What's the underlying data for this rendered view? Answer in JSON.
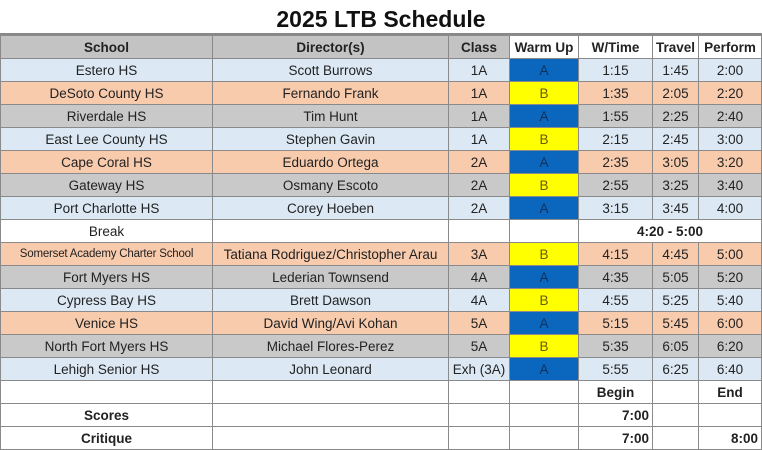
{
  "title": "2025 LTB Schedule",
  "columns": [
    "School",
    "Director(s)",
    "Class",
    "Warm Up",
    "W/Time",
    "Travel",
    "Perform"
  ],
  "colors": {
    "light_blue": "#dce9f5",
    "peach": "#f8cbad",
    "gray": "#c9c9c9",
    "warmup_a": "#0b67bd",
    "warmup_b": "#ffff00"
  },
  "rows": [
    {
      "school": "Estero HS",
      "director": "Scott Burrows",
      "class": "1A",
      "warmup": "A",
      "wtime": "1:15",
      "travel": "1:45",
      "perform": "2:00",
      "shade": "lb"
    },
    {
      "school": "DeSoto County HS",
      "director": "Fernando Frank",
      "class": "1A",
      "warmup": "B",
      "wtime": "1:35",
      "travel": "2:05",
      "perform": "2:20",
      "shade": "pe"
    },
    {
      "school": "Riverdale HS",
      "director": "Tim Hunt",
      "class": "1A",
      "warmup": "A",
      "wtime": "1:55",
      "travel": "2:25",
      "perform": "2:40",
      "shade": "gr"
    },
    {
      "school": "East Lee County HS",
      "director": "Stephen Gavin",
      "class": "1A",
      "warmup": "B",
      "wtime": "2:15",
      "travel": "2:45",
      "perform": "3:00",
      "shade": "lb"
    },
    {
      "school": "Cape Coral HS",
      "director": "Eduardo Ortega",
      "class": "2A",
      "warmup": "A",
      "wtime": "2:35",
      "travel": "3:05",
      "perform": "3:20",
      "shade": "pe"
    },
    {
      "school": "Gateway HS",
      "director": "Osmany Escoto",
      "class": "2A",
      "warmup": "B",
      "wtime": "2:55",
      "travel": "3:25",
      "perform": "3:40",
      "shade": "gr"
    },
    {
      "school": "Port Charlotte HS",
      "director": "Corey Hoeben",
      "class": "2A",
      "warmup": "A",
      "wtime": "3:15",
      "travel": "3:45",
      "perform": "4:00",
      "shade": "lb"
    }
  ],
  "break": {
    "label": "Break",
    "time": "4:20 - 5:00"
  },
  "rows2": [
    {
      "school": "Somerset Academy Charter School",
      "director": "Tatiana Rodriguez/Christopher Arau",
      "class": "3A",
      "warmup": "B",
      "wtime": "4:15",
      "travel": "4:45",
      "perform": "5:00",
      "shade": "pe"
    },
    {
      "school": "Fort Myers HS",
      "director": "Lederian Townsend",
      "class": "4A",
      "warmup": "A",
      "wtime": "4:35",
      "travel": "5:05",
      "perform": "5:20",
      "shade": "gr"
    },
    {
      "school": "Cypress Bay HS",
      "director": "Brett Dawson",
      "class": "4A",
      "warmup": "B",
      "wtime": "4:55",
      "travel": "5:25",
      "perform": "5:40",
      "shade": "lb"
    },
    {
      "school": "Venice HS",
      "director": "David Wing/Avi Kohan",
      "class": "5A",
      "warmup": "A",
      "wtime": "5:15",
      "travel": "5:45",
      "perform": "6:00",
      "shade": "pe"
    },
    {
      "school": "North Fort Myers HS",
      "director": "Michael Flores-Perez",
      "class": "5A",
      "warmup": "B",
      "wtime": "5:35",
      "travel": "6:05",
      "perform": "6:20",
      "shade": "gr"
    },
    {
      "school": "Lehigh Senior HS",
      "director": "John Leonard",
      "class": "Exh (3A)",
      "warmup": "A",
      "wtime": "5:55",
      "travel": "6:25",
      "perform": "6:40",
      "shade": "lb"
    }
  ],
  "footer": {
    "begin_label": "Begin",
    "end_label": "End",
    "scores": {
      "label": "Scores",
      "begin": "7:00",
      "end": ""
    },
    "critique": {
      "label": "Critique",
      "begin": "7:00",
      "end": "8:00"
    }
  }
}
